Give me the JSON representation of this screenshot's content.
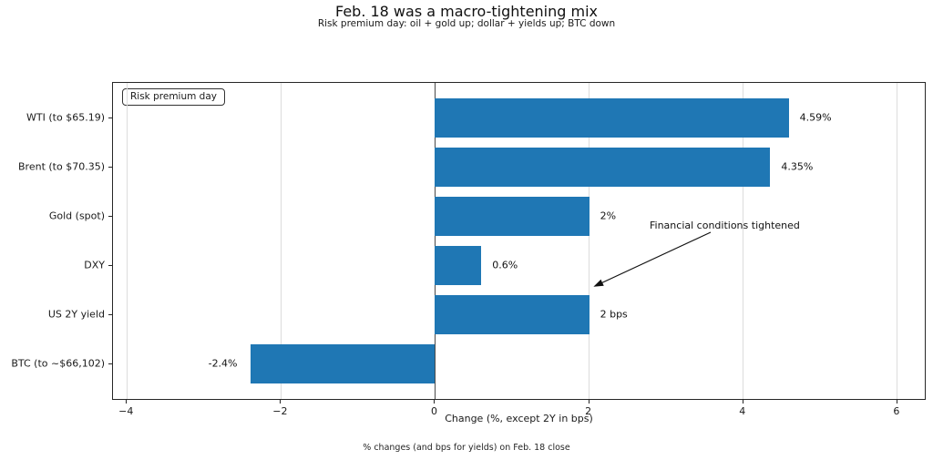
{
  "chart_data": {
    "type": "bar",
    "orientation": "horizontal",
    "title": "Feb. 18 was a macro-tightening mix",
    "subtitle": "Risk premium day: oil + gold up; dollar + yields up; BTC down",
    "categories": [
      "WTI (to $65.19)",
      "Brent (to $70.35)",
      "Gold (spot)",
      "DXY",
      "US 2Y yield",
      "BTC (to ~$66,102)"
    ],
    "values": [
      4.59,
      4.35,
      2,
      0.6,
      2,
      -2.4
    ],
    "value_labels": [
      "4.59%",
      "4.35%",
      "2%",
      "0.6%",
      "2 bps",
      "-2.4%"
    ],
    "xlabel": "Change (%, except 2Y in bps)",
    "footnote": "% changes (and bps for yields) on Feb. 18 close",
    "xlim": [
      -4.18,
      6.38
    ],
    "xticks": [
      -4,
      -2,
      0,
      2,
      4,
      6
    ],
    "xtick_labels": [
      "−4",
      "−2",
      "0",
      "2",
      "4",
      "6"
    ],
    "legend": "Risk premium day",
    "legend_position": "upper left",
    "annotation": "Financial conditions tightened",
    "grid": true,
    "colors": {
      "bar": "#1f77b4",
      "grid": "#dcdcdc",
      "zero_line": "#4a4a4a",
      "spine": "#262626",
      "text": "#1a1a1a"
    }
  }
}
